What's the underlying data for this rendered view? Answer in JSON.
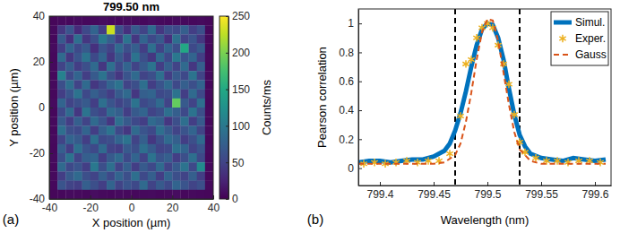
{
  "chart_data": [
    {
      "type": "heatmap",
      "title": "799.50 nm",
      "panel_label": "(a)",
      "x_label": "X position (µm)",
      "y_label": "Y position (µm)",
      "xlim": [
        -40,
        40
      ],
      "ylim": [
        -40,
        40
      ],
      "xticks": [
        -40,
        -20,
        0,
        20,
        40
      ],
      "yticks": [
        -40,
        -20,
        0,
        20,
        40
      ],
      "x": [
        -38,
        -34,
        -30,
        -26,
        -22,
        -18,
        -14,
        -10,
        -6,
        -2,
        2,
        6,
        10,
        14,
        18,
        22,
        26,
        30,
        34,
        38
      ],
      "y": [
        38,
        34,
        30,
        26,
        22,
        18,
        14,
        10,
        6,
        2,
        -2,
        -6,
        -10,
        -14,
        -18,
        -22,
        -26,
        -30,
        -34,
        -38
      ],
      "cells": [
        [
          4,
          6,
          5,
          7,
          5,
          6,
          8,
          6,
          5,
          7,
          6,
          5,
          8,
          6,
          5,
          7,
          6,
          5,
          6,
          4
        ],
        [
          6,
          40,
          65,
          30,
          55,
          80,
          45,
          230,
          60,
          35,
          70,
          50,
          85,
          40,
          60,
          55,
          75,
          45,
          60,
          5
        ],
        [
          5,
          70,
          35,
          90,
          40,
          60,
          100,
          75,
          45,
          95,
          40,
          80,
          55,
          70,
          35,
          90,
          50,
          65,
          40,
          6
        ],
        [
          7,
          45,
          80,
          55,
          70,
          35,
          65,
          50,
          85,
          60,
          75,
          45,
          90,
          50,
          80,
          60,
          150,
          55,
          70,
          5
        ],
        [
          5,
          85,
          40,
          65,
          95,
          55,
          80,
          40,
          70,
          45,
          95,
          60,
          40,
          85,
          55,
          100,
          65,
          80,
          45,
          6
        ],
        [
          6,
          50,
          75,
          45,
          60,
          85,
          40,
          90,
          55,
          80,
          50,
          70,
          95,
          45,
          75,
          50,
          85,
          40,
          75,
          5
        ],
        [
          5,
          110,
          55,
          80,
          45,
          70,
          95,
          60,
          40,
          65,
          85,
          50,
          60,
          90,
          45,
          70,
          55,
          95,
          50,
          7
        ],
        [
          6,
          60,
          90,
          50,
          85,
          40,
          55,
          80,
          95,
          50,
          60,
          90,
          45,
          65,
          85,
          55,
          75,
          60,
          80,
          5
        ],
        [
          5,
          45,
          65,
          95,
          55,
          75,
          60,
          45,
          70,
          85,
          40,
          75,
          80,
          55,
          60,
          95,
          45,
          85,
          55,
          6
        ],
        [
          7,
          80,
          50,
          60,
          70,
          45,
          90,
          65,
          50,
          60,
          95,
          55,
          65,
          85,
          50,
          190,
          70,
          50,
          90,
          5
        ],
        [
          5,
          55,
          85,
          40,
          95,
          60,
          50,
          85,
          75,
          45,
          70,
          80,
          50,
          60,
          90,
          75,
          55,
          95,
          60,
          6
        ],
        [
          6,
          70,
          45,
          75,
          50,
          85,
          65,
          40,
          90,
          70,
          55,
          45,
          85,
          75,
          40,
          60,
          90,
          45,
          70,
          5
        ],
        [
          5,
          90,
          60,
          55,
          80,
          45,
          75,
          95,
          55,
          40,
          85,
          65,
          55,
          90,
          70,
          50,
          65,
          80,
          50,
          7
        ],
        [
          6,
          50,
          80,
          70,
          45,
          90,
          55,
          60,
          80,
          95,
          50,
          75,
          40,
          60,
          85,
          75,
          45,
          60,
          85,
          5
        ],
        [
          5,
          75,
          45,
          90,
          65,
          55,
          85,
          50,
          45,
          70,
          60,
          90,
          70,
          50,
          55,
          90,
          80,
          50,
          65,
          6
        ],
        [
          7,
          60,
          95,
          50,
          75,
          80,
          45,
          70,
          85,
          55,
          80,
          50,
          95,
          65,
          75,
          45,
          60,
          90,
          55,
          5
        ],
        [
          5,
          85,
          55,
          65,
          45,
          100,
          60,
          90,
          50,
          75,
          45,
          70,
          55,
          85,
          50,
          70,
          95,
          55,
          120,
          6
        ],
        [
          6,
          45,
          70,
          85,
          60,
          50,
          75,
          55,
          80,
          60,
          90,
          55,
          75,
          45,
          80,
          60,
          50,
          75,
          45,
          5
        ],
        [
          5,
          65,
          50,
          45,
          75,
          60,
          45,
          80,
          50,
          65,
          55,
          85,
          50,
          70,
          55,
          80,
          65,
          50,
          60,
          6
        ],
        [
          4,
          5,
          7,
          6,
          5,
          8,
          6,
          5,
          7,
          6,
          5,
          6,
          7,
          5,
          6,
          8,
          5,
          6,
          5,
          4
        ]
      ],
      "colorbar": {
        "label": "Counts/ms",
        "range": [
          0,
          250
        ],
        "ticks": [
          0,
          50,
          100,
          150,
          200,
          250
        ]
      }
    },
    {
      "type": "line",
      "panel_label": "(b)",
      "x_label": "Wavelength (nm)",
      "y_label": "Pearson correlation",
      "xlim": [
        799.38,
        799.615
      ],
      "ylim": [
        -0.12,
        1.1
      ],
      "xticks": [
        799.4,
        799.45,
        799.5,
        799.55,
        799.6
      ],
      "yticks": [
        0,
        0.2,
        0.4,
        0.6,
        0.8,
        1
      ],
      "legend": "upper right",
      "vlines": {
        "values": [
          799.47,
          799.53
        ],
        "line_style": "dashed"
      },
      "series": [
        {
          "name": "Simul.",
          "type": "line",
          "line_style": "solid",
          "color": "#0072bd",
          "x": [
            799.38,
            799.39,
            799.4,
            799.41,
            799.42,
            799.43,
            799.44,
            799.45,
            799.46,
            799.465,
            799.47,
            799.475,
            799.48,
            799.485,
            799.49,
            799.495,
            799.5,
            799.505,
            799.51,
            799.515,
            799.52,
            799.525,
            799.53,
            799.535,
            799.54,
            799.55,
            799.56,
            799.57,
            799.58,
            799.59,
            799.6,
            799.61
          ],
          "values": [
            0.04,
            0.05,
            0.05,
            0.04,
            0.05,
            0.06,
            0.06,
            0.08,
            0.12,
            0.17,
            0.26,
            0.38,
            0.53,
            0.7,
            0.85,
            0.96,
            1.0,
            0.99,
            0.9,
            0.75,
            0.55,
            0.37,
            0.23,
            0.15,
            0.1,
            0.07,
            0.06,
            0.05,
            0.07,
            0.06,
            0.05,
            0.06
          ]
        },
        {
          "name": "Exper.",
          "type": "scatter",
          "marker": "asterisk",
          "color": "#edb120",
          "x": [
            799.385,
            799.395,
            799.405,
            799.415,
            799.425,
            799.435,
            799.445,
            799.455,
            799.465,
            799.475,
            799.48,
            799.485,
            799.49,
            799.495,
            799.5,
            799.505,
            799.51,
            799.515,
            799.52,
            799.525,
            799.53,
            799.535,
            799.545,
            799.555,
            799.565,
            799.575,
            799.585,
            799.595,
            799.605
          ],
          "values": [
            0.03,
            0.04,
            0.03,
            0.04,
            0.05,
            0.04,
            0.05,
            0.05,
            0.1,
            0.36,
            0.72,
            0.75,
            0.9,
            0.97,
            1.0,
            0.97,
            0.85,
            0.72,
            0.58,
            0.37,
            0.18,
            0.11,
            0.07,
            0.05,
            0.05,
            0.04,
            0.05,
            0.05,
            0.04
          ]
        },
        {
          "name": "Gauss",
          "type": "line",
          "line_style": "dashed",
          "color": "#d95319",
          "x": [
            799.38,
            799.4,
            799.42,
            799.44,
            799.45,
            799.46,
            799.47,
            799.475,
            799.48,
            799.485,
            799.49,
            799.495,
            799.5,
            799.505,
            799.51,
            799.515,
            799.52,
            799.525,
            799.53,
            799.54,
            799.55,
            799.56,
            799.58,
            799.6,
            799.61
          ],
          "values": [
            0.03,
            0.03,
            0.03,
            0.03,
            0.03,
            0.04,
            0.09,
            0.17,
            0.32,
            0.52,
            0.75,
            0.94,
            1.03,
            1.02,
            0.88,
            0.66,
            0.44,
            0.25,
            0.13,
            0.05,
            0.03,
            0.03,
            0.03,
            0.03,
            0.03
          ]
        }
      ]
    }
  ]
}
